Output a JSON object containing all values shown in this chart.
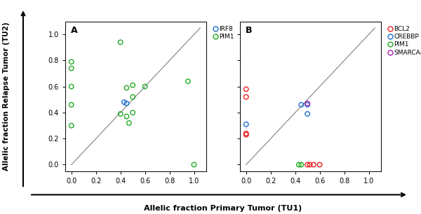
{
  "panel_A": {
    "IRF8": {
      "x": [
        0.43,
        0.45
      ],
      "y": [
        0.48,
        0.47
      ]
    },
    "PIM1": {
      "x": [
        0.0,
        0.0,
        0.0,
        0.0,
        0.0,
        0.4,
        0.4,
        0.45,
        0.45,
        0.47,
        0.5,
        0.5,
        0.5,
        0.6,
        0.95,
        1.0
      ],
      "y": [
        0.79,
        0.74,
        0.6,
        0.46,
        0.3,
        0.94,
        0.39,
        0.59,
        0.37,
        0.32,
        0.61,
        0.52,
        0.4,
        0.6,
        0.64,
        0.0
      ]
    }
  },
  "panel_B": {
    "BCL2": {
      "x": [
        0.0,
        0.0,
        0.0,
        0.0,
        0.5,
        0.52,
        0.55,
        0.6
      ],
      "y": [
        0.58,
        0.52,
        0.24,
        0.23,
        0.0,
        0.0,
        0.0,
        0.0
      ]
    },
    "CREBBP": {
      "x": [
        0.0,
        0.45,
        0.5,
        0.5
      ],
      "y": [
        0.31,
        0.46,
        0.46,
        0.39
      ]
    },
    "PIM1": {
      "x": [
        0.43,
        0.45
      ],
      "y": [
        0.0,
        0.0
      ]
    },
    "SMARCA4": {
      "x": [
        0.5
      ],
      "y": [
        0.47
      ]
    }
  },
  "colors": {
    "IRF8": "#1a6fcc",
    "PIM1_A": "#22aa22",
    "BCL2": "#ee2222",
    "CREBBP": "#1a6fcc",
    "PIM1_B": "#22aa22",
    "SMARCA4": "#aa22aa"
  },
  "xlim": [
    -0.05,
    1.1
  ],
  "ylim": [
    -0.05,
    1.1
  ],
  "xticks": [
    0.0,
    0.2,
    0.4,
    0.6,
    0.8,
    1.0
  ],
  "yticks": [
    0.0,
    0.2,
    0.4,
    0.6,
    0.8,
    1.0
  ],
  "xlabel": "Allelic fraction Primary Tumor (TU1)",
  "ylabel": "Allelic fraction Relapse Tumor (TU2)",
  "title_A": "A",
  "title_B": "B",
  "marker_size": 22,
  "marker_lw": 1.0
}
